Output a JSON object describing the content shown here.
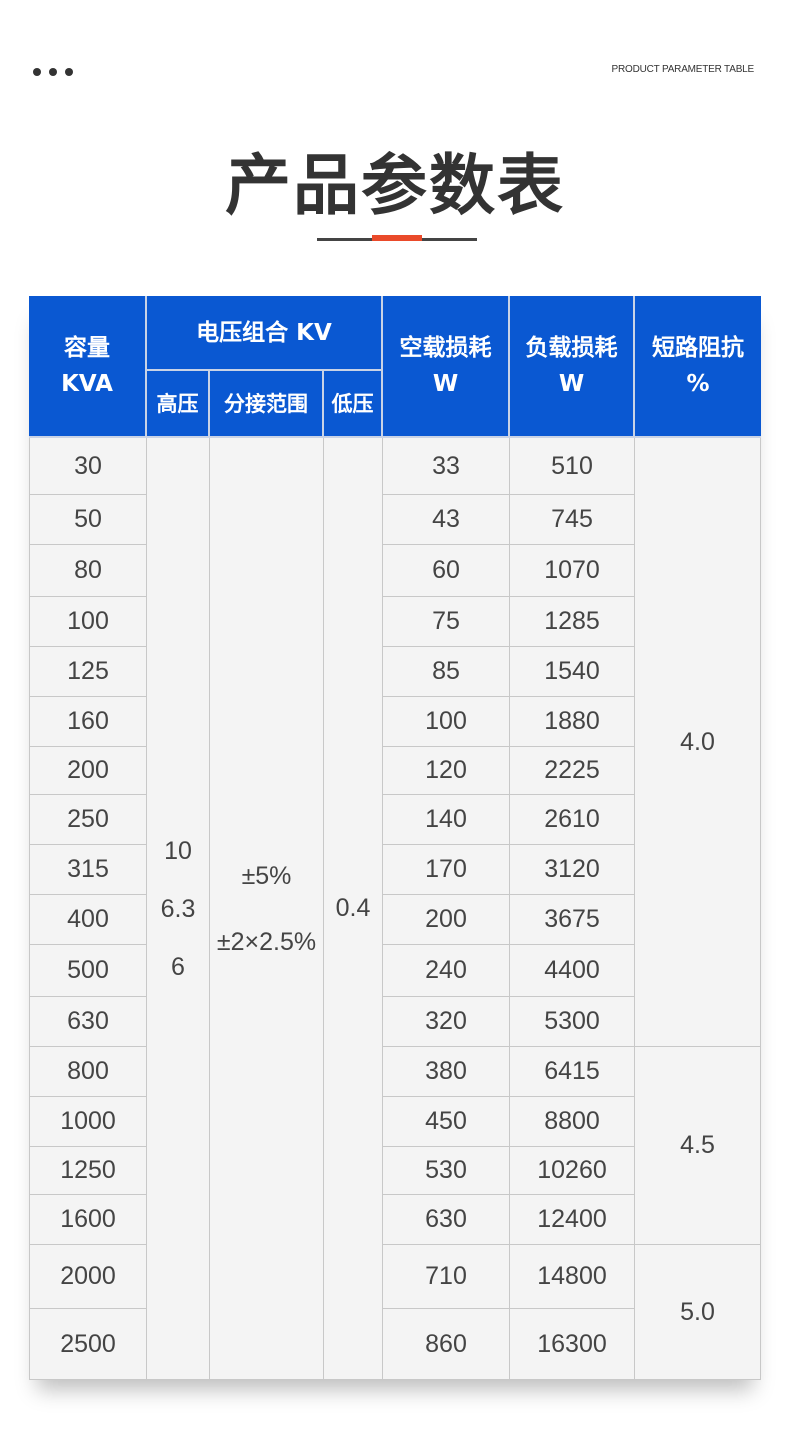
{
  "header": {
    "subtitle": "PRODUCT PARAMETER TABLE",
    "title": "产品参数表",
    "menu_icon": "more-dots-icon"
  },
  "colors": {
    "header_blue": "#0a58d2",
    "accent": "#ea4a2a",
    "cell_bg": "#f4f4f4"
  },
  "table": {
    "headers": {
      "capacity": "容量\nKVA",
      "voltage_group": "电压组合 KV",
      "high_voltage": "高压",
      "tap_range": "分接范围",
      "low_voltage": "低压",
      "no_load_loss": "空载损耗\nW",
      "load_loss": "负载损耗\nW",
      "impedance": "短路阻抗\n%"
    },
    "high_voltage_values": [
      "10",
      "6.3",
      "6"
    ],
    "tap_range_values": [
      "±5%",
      "±2×2.5%"
    ],
    "low_voltage_value": "0.4",
    "rows": [
      {
        "capacity": "30",
        "no_load": "33",
        "load": "510"
      },
      {
        "capacity": "50",
        "no_load": "43",
        "load": "745"
      },
      {
        "capacity": "80",
        "no_load": "60",
        "load": "1070"
      },
      {
        "capacity": "100",
        "no_load": "75",
        "load": "1285"
      },
      {
        "capacity": "125",
        "no_load": "85",
        "load": "1540"
      },
      {
        "capacity": "160",
        "no_load": "100",
        "load": "1880"
      },
      {
        "capacity": "200",
        "no_load": "120",
        "load": "2225"
      },
      {
        "capacity": "250",
        "no_load": "140",
        "load": "2610"
      },
      {
        "capacity": "315",
        "no_load": "170",
        "load": "3120"
      },
      {
        "capacity": "400",
        "no_load": "200",
        "load": "3675"
      },
      {
        "capacity": "500",
        "no_load": "240",
        "load": "4400"
      },
      {
        "capacity": "630",
        "no_load": "320",
        "load": "5300"
      },
      {
        "capacity": "800",
        "no_load": "380",
        "load": "6415"
      },
      {
        "capacity": "1000",
        "no_load": "450",
        "load": "8800"
      },
      {
        "capacity": "1250",
        "no_load": "530",
        "load": "10260"
      },
      {
        "capacity": "1600",
        "no_load": "630",
        "load": "12400"
      },
      {
        "capacity": "2000",
        "no_load": "710",
        "load": "14800"
      },
      {
        "capacity": "2500",
        "no_load": "860",
        "load": "16300"
      }
    ],
    "impedance_groups": [
      {
        "value": "4.0",
        "rows": 12
      },
      {
        "value": "4.5",
        "rows": 4
      },
      {
        "value": "5.0",
        "rows": 2
      }
    ]
  }
}
